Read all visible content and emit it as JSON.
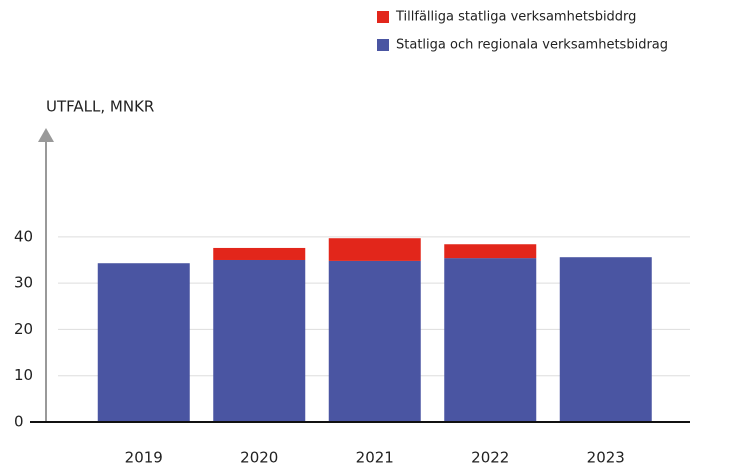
{
  "chart_data": {
    "type": "bar",
    "stacked": true,
    "y_label": "UTFALL, MNKR",
    "categories": [
      "2019",
      "2020",
      "2021",
      "2022",
      "2023"
    ],
    "series": [
      {
        "name": "Statliga och regionala verksamhetsbidrag",
        "color": "#4a55a2",
        "values": [
          34.3,
          35.0,
          34.8,
          35.4,
          35.6
        ]
      },
      {
        "name": "Tillfälliga statliga verksamhetsbiddrg",
        "color": "#e2261b",
        "values": [
          null,
          2.6,
          4.9,
          3.0,
          null
        ]
      }
    ],
    "ylim": [
      0,
      62
    ],
    "yticks": [
      0,
      10,
      20,
      30,
      40
    ],
    "grid": true
  }
}
